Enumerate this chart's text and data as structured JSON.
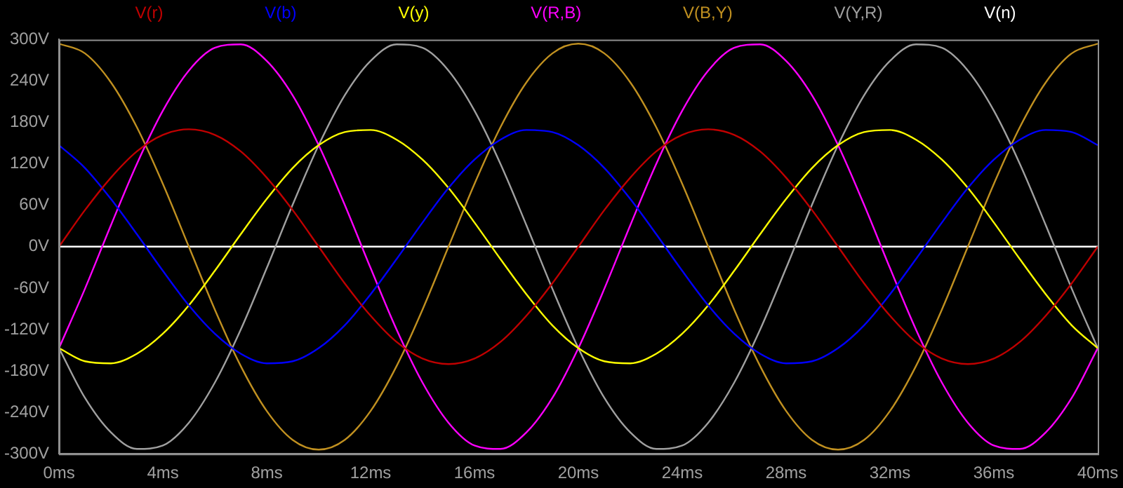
{
  "chart_data": {
    "type": "line",
    "legend": "top",
    "grid": false,
    "marker": "none",
    "line_style": "solid",
    "x": [
      0,
      1,
      2,
      3,
      4,
      5,
      6,
      7,
      8,
      9,
      10,
      11,
      12,
      13,
      14,
      15,
      16,
      17,
      18,
      19,
      20,
      21,
      22,
      23,
      24,
      25,
      26,
      27,
      28,
      29,
      30,
      31,
      32,
      33,
      34,
      35,
      36,
      37,
      38,
      39,
      40
    ],
    "xlim": [
      0,
      40
    ],
    "xticks": [
      {
        "value": 0,
        "label": "0ms"
      },
      {
        "value": 4,
        "label": "4ms"
      },
      {
        "value": 8,
        "label": "8ms"
      },
      {
        "value": 12,
        "label": "12ms"
      },
      {
        "value": 16,
        "label": "16ms"
      },
      {
        "value": 20,
        "label": "20ms"
      },
      {
        "value": 24,
        "label": "24ms"
      },
      {
        "value": 28,
        "label": "28ms"
      },
      {
        "value": 32,
        "label": "32ms"
      },
      {
        "value": 36,
        "label": "36ms"
      },
      {
        "value": 40,
        "label": "40ms"
      }
    ],
    "ylim": [
      -300,
      300
    ],
    "yticks": [
      {
        "value": -300,
        "label": "-300V"
      },
      {
        "value": -240,
        "label": "-240V"
      },
      {
        "value": -180,
        "label": "-180V"
      },
      {
        "value": -120,
        "label": "-120V"
      },
      {
        "value": -60,
        "label": "-60V"
      },
      {
        "value": 0,
        "label": "0V"
      },
      {
        "value": 60,
        "label": "60V"
      },
      {
        "value": 120,
        "label": "120V"
      },
      {
        "value": 180,
        "label": "180V"
      },
      {
        "value": 240,
        "label": "240V"
      },
      {
        "value": 300,
        "label": "300V"
      }
    ],
    "series": [
      {
        "name": "V(r)",
        "color": "#c00000",
        "values": [
          0,
          53,
          100,
          138,
          162,
          170,
          162,
          138,
          100,
          53,
          0,
          -53,
          -100,
          -138,
          -162,
          -170,
          -162,
          -138,
          -100,
          -53,
          0,
          53,
          100,
          138,
          162,
          170,
          162,
          138,
          100,
          53,
          0,
          -53,
          -100,
          -138,
          -162,
          -170,
          -162,
          -138,
          -100,
          -53,
          0
        ]
      },
      {
        "name": "V(b)",
        "color": "#0000ff",
        "values": [
          147,
          114,
          69,
          18,
          -35,
          -85,
          -126,
          -155,
          -169,
          -166,
          -147,
          -114,
          -69,
          -18,
          35,
          85,
          126,
          155,
          169,
          166,
          147,
          114,
          69,
          18,
          -35,
          -85,
          -126,
          -155,
          -169,
          -166,
          -147,
          -114,
          -69,
          -18,
          35,
          85,
          126,
          155,
          169,
          166,
          147
        ]
      },
      {
        "name": "V(y)",
        "color": "#ffff00",
        "values": [
          -147,
          -166,
          -169,
          -155,
          -126,
          -85,
          -35,
          18,
          69,
          114,
          147,
          166,
          169,
          155,
          126,
          85,
          35,
          -18,
          -69,
          -114,
          -147,
          -166,
          -169,
          -155,
          -126,
          -85,
          -35,
          18,
          69,
          114,
          147,
          166,
          169,
          155,
          126,
          85,
          35,
          -18,
          -69,
          -114,
          -147
        ]
      },
      {
        "name": "V(R,B)",
        "color": "#ff00ff",
        "values": [
          -147,
          -61,
          31,
          120,
          197,
          255,
          288,
          293,
          269,
          219,
          147,
          61,
          -31,
          -120,
          -197,
          -255,
          -288,
          -293,
          -269,
          -219,
          -147,
          -61,
          31,
          120,
          197,
          255,
          288,
          293,
          269,
          219,
          147,
          61,
          -31,
          -120,
          -197,
          -255,
          -288,
          -293,
          -269,
          -219,
          -147
        ]
      },
      {
        "name": "V(B,Y)",
        "color": "#c09020",
        "values": [
          294,
          280,
          238,
          173,
          91,
          0,
          -91,
          -173,
          -238,
          -280,
          -294,
          -280,
          -238,
          -173,
          -91,
          0,
          91,
          173,
          238,
          280,
          294,
          280,
          238,
          173,
          91,
          0,
          -91,
          -173,
          -238,
          -280,
          -294,
          -280,
          -238,
          -173,
          -91,
          0,
          91,
          173,
          238,
          280,
          294
        ]
      },
      {
        "name": "V(Y,R)",
        "color": "#a0a0a0",
        "values": [
          -147,
          -219,
          -269,
          -293,
          -288,
          -255,
          -197,
          -120,
          -31,
          61,
          147,
          219,
          269,
          293,
          288,
          255,
          197,
          120,
          31,
          -61,
          -147,
          -219,
          -269,
          -293,
          -288,
          -255,
          -197,
          -120,
          -31,
          61,
          147,
          219,
          269,
          293,
          288,
          255,
          197,
          120,
          31,
          -61,
          -147
        ]
      },
      {
        "name": "V(n)",
        "color": "#ffffff",
        "values": [
          0,
          0,
          0,
          0,
          0,
          0,
          0,
          0,
          0,
          0,
          0,
          0,
          0,
          0,
          0,
          0,
          0,
          0,
          0,
          0,
          0,
          0,
          0,
          0,
          0,
          0,
          0,
          0,
          0,
          0,
          0,
          0,
          0,
          0,
          0,
          0,
          0,
          0,
          0,
          0,
          0
        ]
      }
    ]
  }
}
